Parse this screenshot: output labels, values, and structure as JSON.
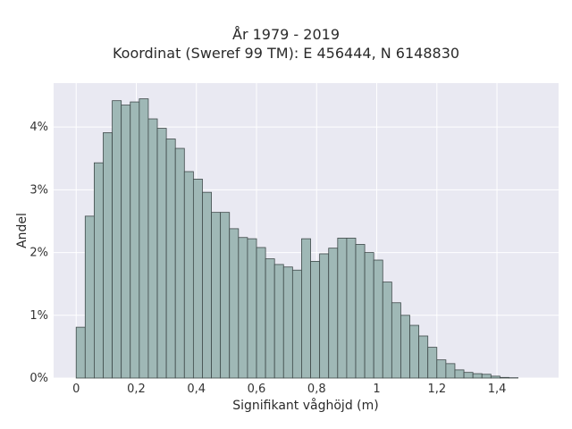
{
  "chart_data": {
    "type": "bar",
    "title": "År 1979 - 2019",
    "subtitle": "Koordinat (Sweref 99 TM): E 456444, N 6148830",
    "xlabel": "Signifikant våghöjd (m)",
    "ylabel": "Andel",
    "bin_width": 0.03,
    "bin_start": 0,
    "values": [
      0.81,
      2.58,
      3.43,
      3.91,
      4.42,
      4.35,
      4.4,
      4.45,
      4.13,
      3.98,
      3.81,
      3.66,
      3.29,
      3.17,
      2.96,
      2.64,
      2.64,
      2.38,
      2.24,
      2.22,
      2.08,
      1.9,
      1.81,
      1.77,
      1.72,
      2.22,
      1.86,
      1.98,
      2.07,
      2.23,
      2.23,
      2.13,
      2.0,
      1.88,
      1.53,
      1.2,
      1.0,
      0.84,
      0.67,
      0.49,
      0.29,
      0.23,
      0.13,
      0.09,
      0.07,
      0.06,
      0.03,
      0.01,
      0.005
    ],
    "xlim": [
      -0.075,
      1.605
    ],
    "ylim": [
      0,
      4.7
    ],
    "x_ticks": [
      0,
      0.2,
      0.4,
      0.6,
      0.8,
      1.0,
      1.2,
      1.4
    ],
    "x_tick_labels": [
      "0",
      "0,2",
      "0,4",
      "0,6",
      "0,8",
      "1",
      "1,2",
      "1,4"
    ],
    "y_ticks": [
      0,
      1,
      2,
      3,
      4
    ],
    "y_tick_labels": [
      "0%",
      "1%",
      "2%",
      "3%",
      "4%"
    ],
    "grid": true,
    "colors": {
      "bar_fill": "#9fb8b6",
      "bar_stroke": "#3f4a4a",
      "plot_bg": "#e9e9f2",
      "grid": "#ffffff"
    }
  }
}
